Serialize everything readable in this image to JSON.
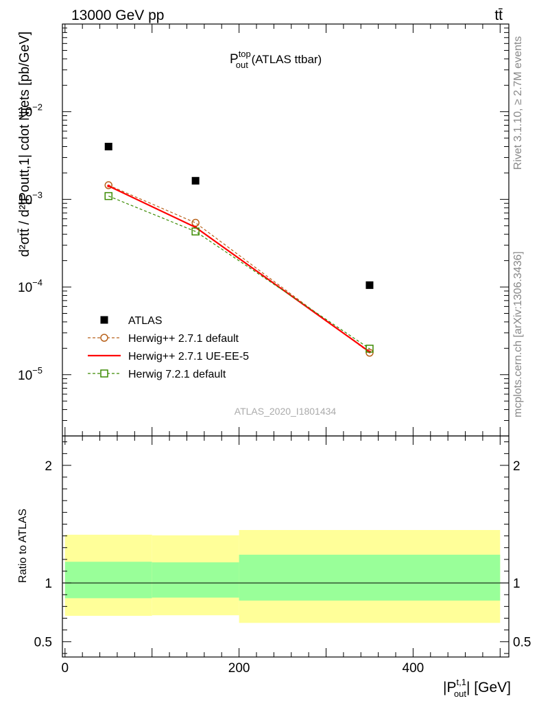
{
  "header": {
    "process": "13000 GeV pp",
    "final_state": "tt̄"
  },
  "side_labels": {
    "rivet": "Rivet 3.1.10, ≥ 2.7M events",
    "mcplots": "mcplots.cern.ch [arXiv:1306.3436]"
  },
  "chart_data": [
    {
      "type": "scatter",
      "title": "P_out^top (ATLAS ttbar)",
      "analysis_tag": "ATLAS_2020_I1801434",
      "ylabel": "d²σ^{tt̄} / d²{|P_out^{t,1}| cdot N_{jets}} [pb/GeV]",
      "yscale": "log",
      "ylim": [
        2e-06,
        0.1
      ],
      "xlim": [
        -3,
        510
      ],
      "yticks": [
        {
          "exp": "−5",
          "value": 1e-05
        },
        {
          "exp": "−4",
          "value": 0.0001
        },
        {
          "exp": "−3",
          "value": 0.001
        },
        {
          "exp": "−2",
          "value": 0.01
        }
      ],
      "grid": false,
      "legend_position": "lower-left",
      "series": [
        {
          "name": "ATLAS",
          "color": "#000000",
          "marker": "filled-square",
          "line": "none",
          "x": [
            50,
            150,
            350
          ],
          "y": [
            0.004,
            0.00163,
            0.000105
          ]
        },
        {
          "name": "Herwig++ 2.7.1 default",
          "color": "#b8621b",
          "marker": "open-circle",
          "line": "dashed",
          "x": [
            50,
            150,
            350
          ],
          "y": [
            0.00145,
            0.00054,
            1.78e-05
          ]
        },
        {
          "name": "Herwig++ 2.7.1 UE-EE-5",
          "color": "#ff0000",
          "marker": "none",
          "line": "solid",
          "x": [
            50,
            150,
            350
          ],
          "y": [
            0.00142,
            0.00048,
            1.82e-05
          ]
        },
        {
          "name": "Herwig 7.2.1 default",
          "color": "#3a8a00",
          "marker": "open-square",
          "line": "dashed",
          "x": [
            50,
            150,
            350
          ],
          "y": [
            0.00109,
            0.00043,
            1.98e-05
          ]
        }
      ]
    },
    {
      "type": "area",
      "ylabel": "Ratio to ATLAS",
      "xlabel": "|P_out^{t,1}| [GeV]",
      "xlim": [
        -3,
        510
      ],
      "ylim": [
        0.37,
        2.25
      ],
      "xticks": [
        0,
        200,
        400
      ],
      "yticks": [
        0.5,
        1,
        2
      ],
      "reference_line": 1,
      "bins": [
        {
          "x_low": 0,
          "x_high": 100,
          "stat_low": 0.87,
          "stat_high": 1.18,
          "total_low": 0.72,
          "total_high": 1.41
        },
        {
          "x_low": 100,
          "x_high": 200,
          "stat_low": 0.875,
          "stat_high": 1.175,
          "total_low": 0.725,
          "total_high": 1.405
        },
        {
          "x_low": 200,
          "x_high": 500,
          "stat_low": 0.85,
          "stat_high": 1.24,
          "total_low": 0.66,
          "total_high": 1.45
        }
      ],
      "band_colors": {
        "stat": "#99ff99",
        "total": "#ffff99"
      }
    }
  ]
}
